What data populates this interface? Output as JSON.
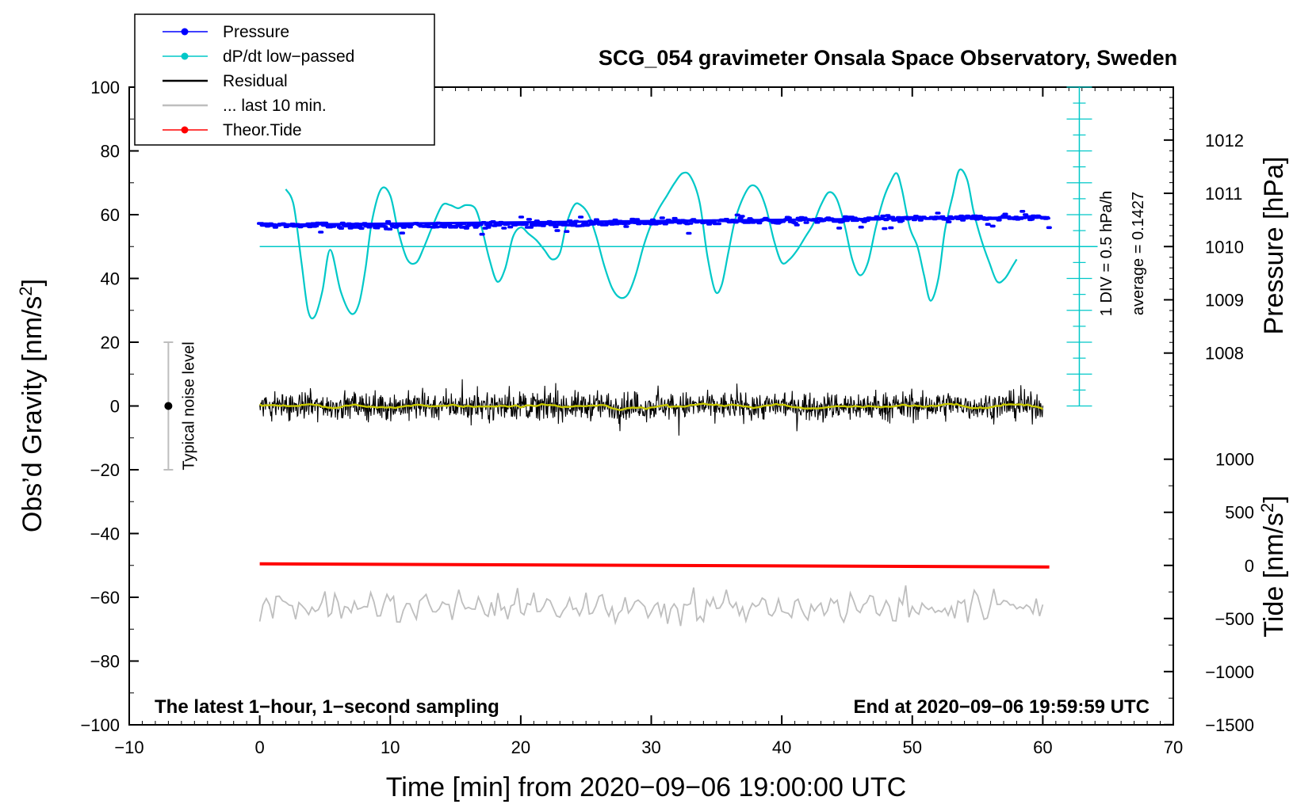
{
  "chart_data": {
    "type": "line",
    "title": "SCG_054 gravimeter Onsala Space Observatory, Sweden",
    "xlabel": "Time [min] from 2020−09−06 19:00:00 UTC",
    "ylabel": "Obs’d Gravity [nm/s",
    "ylabel_sup": "2",
    "ylabel_end": "]",
    "y2label": "Pressure [hPa]",
    "y3label": "Tide [nm/s",
    "y3label_sup": "2",
    "y3label_end": "]",
    "xlim": [
      -10,
      70
    ],
    "ylim": [
      -100,
      100
    ],
    "x_ticks": [
      -10,
      0,
      10,
      20,
      30,
      40,
      50,
      60,
      70
    ],
    "x_tick_labels": [
      "−10",
      "0",
      "10",
      "20",
      "30",
      "40",
      "50",
      "60",
      "70"
    ],
    "y_ticks": [
      -100,
      -80,
      -60,
      -40,
      -20,
      0,
      20,
      40,
      60,
      80,
      100
    ],
    "y_tick_labels": [
      "−100",
      "−80",
      "−60",
      "−40",
      "−20",
      "0",
      "20",
      "40",
      "60",
      "80",
      "100"
    ],
    "pressure_axis": {
      "ticks": [
        1008,
        1009,
        1010,
        1011,
        1012
      ],
      "tick_labels": [
        "1008",
        "1009",
        "1010",
        "1011",
        "1012"
      ],
      "gravity_at_1010": 50,
      "gravity_per_hpa": 16.7
    },
    "tide_axis": {
      "ticks": [
        -1500,
        -1000,
        -500,
        0,
        500,
        1000
      ],
      "tick_labels": [
        "−1500",
        "−1000",
        "−500",
        "0",
        "500",
        "1000"
      ],
      "gravity_at_zero": -50,
      "gravity_per_unit": 0.0333
    },
    "legend": {
      "position": "top-left",
      "entries": [
        {
          "label": "Pressure",
          "color": "#0000ff",
          "marker": true
        },
        {
          "label": "dP/dt low−passed",
          "color": "#00c8c8",
          "marker": true
        },
        {
          "label": "Residual",
          "color": "#000000",
          "marker": false
        },
        {
          "label": "... last 10 min.",
          "color": "#bebebe",
          "marker": false
        },
        {
          "label": "Theor.Tide",
          "color": "#ff0000",
          "marker": true
        }
      ]
    },
    "series": [
      {
        "name": "Pressure",
        "color": "#0000ff",
        "unit": "nm/s2 (plotted)",
        "x": [
          0,
          10,
          20,
          30,
          40,
          50,
          60.5
        ],
        "y": [
          56.8,
          56.4,
          57.0,
          57.6,
          58.1,
          58.8,
          59.2
        ],
        "scatter": 1.0
      },
      {
        "name": "dP/dt low-passed",
        "color": "#00c8c8",
        "baseline": 50,
        "x": [
          2,
          2.6,
          3.2,
          3.7,
          4.2,
          4.8,
          5.4,
          6.2,
          7,
          7.6,
          8.1,
          8.6,
          9.3,
          10,
          10.6,
          11.3,
          12,
          12.6,
          13.3,
          14,
          14.6,
          15.2,
          15.8,
          16.5,
          17,
          17.6,
          18.2,
          18.8,
          19.4,
          20,
          20.6,
          21.2,
          21.8,
          22.4,
          23,
          23.5,
          24.1,
          24.6,
          25.2,
          25.8,
          26.4,
          27,
          27.6,
          28.2,
          28.8,
          29.4,
          30,
          30.6,
          31.2,
          31.8,
          32.4,
          33,
          33.7,
          34.3,
          34.9,
          35.4,
          35.9,
          36.4,
          37,
          37.6,
          38.2,
          38.8,
          39.4,
          40,
          40.6,
          41.2,
          41.8,
          42.4,
          43,
          43.6,
          44.2,
          44.8,
          45.4,
          46,
          46.6,
          47.2,
          47.8,
          48.3,
          48.8,
          49.2,
          49.8,
          50.4,
          50.9,
          51.4,
          52,
          52.5,
          53.1,
          53.6,
          54.2,
          54.7,
          55.3,
          55.9,
          56.5,
          57.1,
          57.7,
          58
        ],
        "y": [
          68,
          63,
          45,
          30,
          28,
          36,
          49,
          36,
          29,
          32,
          43,
          58,
          68,
          66,
          55,
          46,
          45,
          50,
          57,
          63,
          63,
          62,
          63,
          62,
          56,
          46,
          39,
          43,
          53,
          56,
          54,
          52,
          49,
          46,
          48,
          57,
          63,
          63,
          60,
          53,
          44,
          37,
          34,
          35,
          41,
          50,
          57,
          62,
          66,
          70,
          73,
          72,
          64,
          47,
          36,
          38,
          48,
          58,
          65,
          69,
          68,
          62,
          52,
          45,
          46,
          49,
          53,
          57,
          63,
          67,
          65,
          57,
          46,
          41,
          45,
          56,
          65,
          70,
          73,
          68,
          56,
          50,
          41,
          33,
          40,
          55,
          66,
          74,
          71,
          61,
          52,
          45,
          39,
          40,
          44,
          46
        ]
      },
      {
        "name": "Residual",
        "color": "#000000",
        "x_range": [
          0,
          60
        ],
        "noise_amplitude": 3.5
      },
      {
        "name": "Residual smoothed",
        "color": "#c8c800",
        "x_range": [
          0,
          60
        ],
        "noise_amplitude": 1.0
      },
      {
        "name": "Theor.Tide",
        "color": "#ff0000",
        "x": [
          0,
          60.5
        ],
        "y": [
          -49.5,
          -50.5
        ]
      },
      {
        "name": "... last 10 min.",
        "color": "#bebebe",
        "x_range": [
          0,
          60
        ],
        "center": -63,
        "noise_amplitude": 4
      }
    ],
    "noise_indicator": {
      "label": "Typical noise level",
      "x": -7,
      "y": 0,
      "range": [
        -20,
        20
      ]
    },
    "right_scale_note": "1 DIV = 0.5 hPa/h",
    "average_note": "average = 0.1427",
    "bottom_left_note": "The latest 1−hour, 1−second sampling",
    "bottom_right_note": "End at 2020−09−06 19:59:59 UTC"
  }
}
